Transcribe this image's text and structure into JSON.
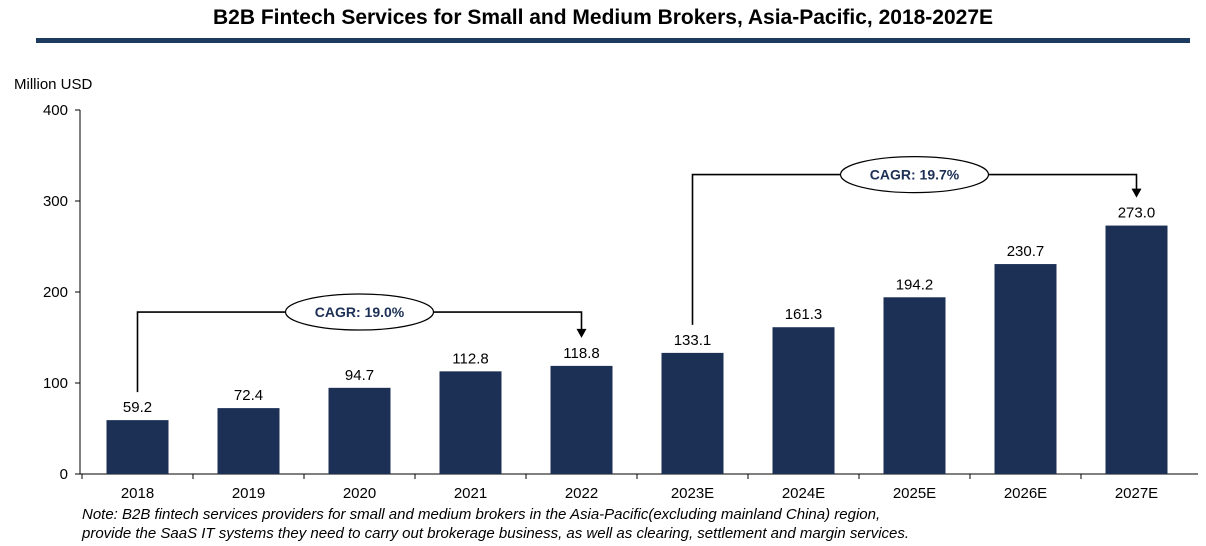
{
  "title": "B2B Fintech Services for Small and Medium Brokers, Asia-Pacific, 2018-2027E",
  "note_line1": "Note: B2B fintech services providers for small and medium brokers in the Asia-Pacific(excluding mainland China) region,",
  "note_line2": "provide the SaaS IT systems they need to carry out brokerage business, as well as clearing, settlement and margin services.",
  "colors": {
    "bar": "#1c2f55",
    "rule": "#1d3a5f"
  },
  "chart_data": {
    "type": "bar",
    "ylabel": "Million USD",
    "ylim": [
      0,
      400
    ],
    "yticks": [
      0,
      100,
      200,
      300,
      400
    ],
    "categories": [
      "2018",
      "2019",
      "2020",
      "2021",
      "2022",
      "2023E",
      "2024E",
      "2025E",
      "2026E",
      "2027E"
    ],
    "values": [
      59.2,
      72.4,
      94.7,
      112.8,
      118.8,
      133.1,
      161.3,
      194.2,
      230.7,
      273.0
    ],
    "labels": [
      "59.2",
      "72.4",
      "94.7",
      "112.8",
      "118.8",
      "133.1",
      "161.3",
      "194.2",
      "230.7",
      "273.0"
    ],
    "annotations": [
      {
        "text": "CAGR: 19.0%",
        "from": 0,
        "to": 4,
        "level": 178
      },
      {
        "text": "CAGR: 19.7%",
        "from": 5,
        "to": 9,
        "level": 329
      }
    ]
  }
}
